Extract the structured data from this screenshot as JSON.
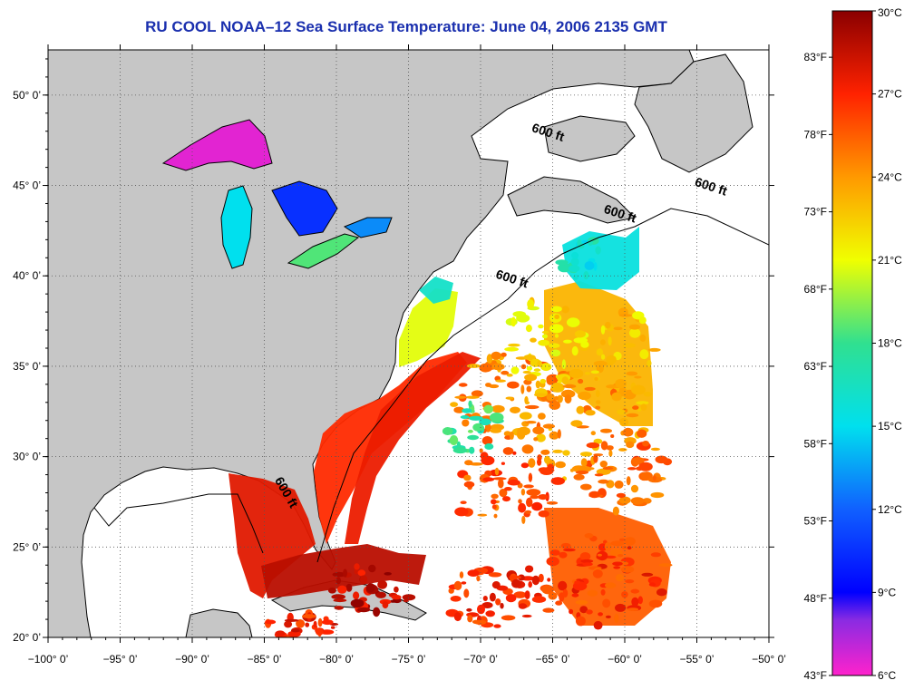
{
  "title": "RU COOL  NOAA–12  Sea Surface Temperature:  June 04, 2006 2135 GMT",
  "map": {
    "lon_range": [
      -100,
      -50
    ],
    "lat_range": [
      20,
      52.5
    ],
    "lon_ticks": [
      {
        "value": -100,
        "label": "−100° 0’"
      },
      {
        "value": -95,
        "label": "−95° 0’"
      },
      {
        "value": -90,
        "label": "−90° 0’"
      },
      {
        "value": -85,
        "label": "−85° 0’"
      },
      {
        "value": -80,
        "label": "−80° 0’"
      },
      {
        "value": -75,
        "label": "−75° 0’"
      },
      {
        "value": -70,
        "label": "−70° 0’"
      },
      {
        "value": -65,
        "label": "−65° 0’"
      },
      {
        "value": -60,
        "label": "−60° 0’"
      },
      {
        "value": -55,
        "label": "−55° 0’"
      },
      {
        "value": -50,
        "label": "−50° 0’"
      }
    ],
    "lat_ticks": [
      {
        "value": 20,
        "label": "20° 0’"
      },
      {
        "value": 25,
        "label": "25° 0’"
      },
      {
        "value": 30,
        "label": "30° 0’"
      },
      {
        "value": 35,
        "label": "35° 0’"
      },
      {
        "value": 40,
        "label": "40° 0’"
      },
      {
        "value": 45,
        "label": "45° 0’"
      },
      {
        "value": 50,
        "label": "50° 0’"
      }
    ],
    "contour_labels": [
      {
        "text": "600 ft",
        "lon": -66.5,
        "lat": 48.0
      },
      {
        "text": "600 ft",
        "lon": -55.2,
        "lat": 45.0
      },
      {
        "text": "600 ft",
        "lon": -61.5,
        "lat": 43.5
      },
      {
        "text": "600 ft",
        "lon": -69.0,
        "lat": 39.9
      },
      {
        "text": "600 ft",
        "lon": -84.3,
        "lat": 28.7
      }
    ],
    "colors": {
      "land": "#c6c6c6",
      "no_data": "#ffffff",
      "grid": "#555555",
      "coastline": "#000000"
    }
  },
  "colorbar": {
    "c_range": [
      6,
      30
    ],
    "f_range": [
      43,
      86
    ],
    "celsius_labels": [
      {
        "value": 30,
        "label": "30°C"
      },
      {
        "value": 27,
        "label": "27°C"
      },
      {
        "value": 24,
        "label": "24°C"
      },
      {
        "value": 21,
        "label": "21°C"
      },
      {
        "value": 18,
        "label": "18°C"
      },
      {
        "value": 15,
        "label": "15°C"
      },
      {
        "value": 12,
        "label": "12°C"
      },
      {
        "value": 9,
        "label": "9°C"
      },
      {
        "value": 6,
        "label": "6°C"
      }
    ],
    "fahrenheit_labels": [
      {
        "value": 83,
        "label": "83°F"
      },
      {
        "value": 78,
        "label": "78°F"
      },
      {
        "value": 73,
        "label": "73°F"
      },
      {
        "value": 68,
        "label": "68°F"
      },
      {
        "value": 63,
        "label": "63°F"
      },
      {
        "value": 58,
        "label": "58°F"
      },
      {
        "value": 53,
        "label": "53°F"
      },
      {
        "value": 48,
        "label": "48°F"
      },
      {
        "value": 43,
        "label": "43°F"
      }
    ],
    "stops": [
      {
        "value": 6,
        "color": "#ff22cc"
      },
      {
        "value": 8,
        "color": "#8a2be2"
      },
      {
        "value": 9,
        "color": "#0000ff"
      },
      {
        "value": 12,
        "color": "#1060ff"
      },
      {
        "value": 15,
        "color": "#00e0ee"
      },
      {
        "value": 18,
        "color": "#30e090"
      },
      {
        "value": 21,
        "color": "#f0ff00"
      },
      {
        "value": 24,
        "color": "#ff9900"
      },
      {
        "value": 27,
        "color": "#ff2200"
      },
      {
        "value": 30,
        "color": "#8a0000"
      }
    ]
  }
}
